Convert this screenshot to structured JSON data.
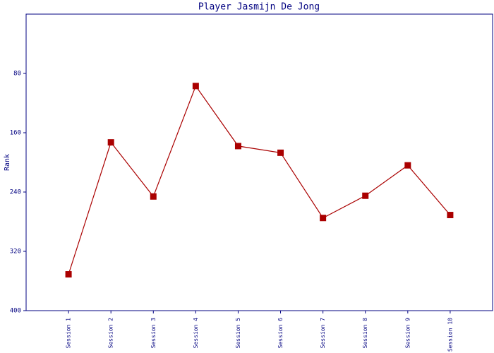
{
  "chart_data": {
    "type": "line",
    "title": "Player Jasmijn De Jong",
    "y_label": "Rank",
    "categories": [
      "Session 1",
      "Session 2",
      "Session 3",
      "Session 4",
      "Session 5",
      "Session 6",
      "Session 7",
      "Session 8",
      "Session 9",
      "Session 10"
    ],
    "series": [
      {
        "name": "Rank",
        "color": "#aa0000",
        "values": [
          351,
          173,
          246,
          97,
          178,
          187,
          275,
          245,
          204,
          271
        ]
      }
    ],
    "ylim": [
      400,
      0
    ],
    "yticks": [
      80,
      160,
      240,
      320,
      400
    ],
    "grid": false
  }
}
